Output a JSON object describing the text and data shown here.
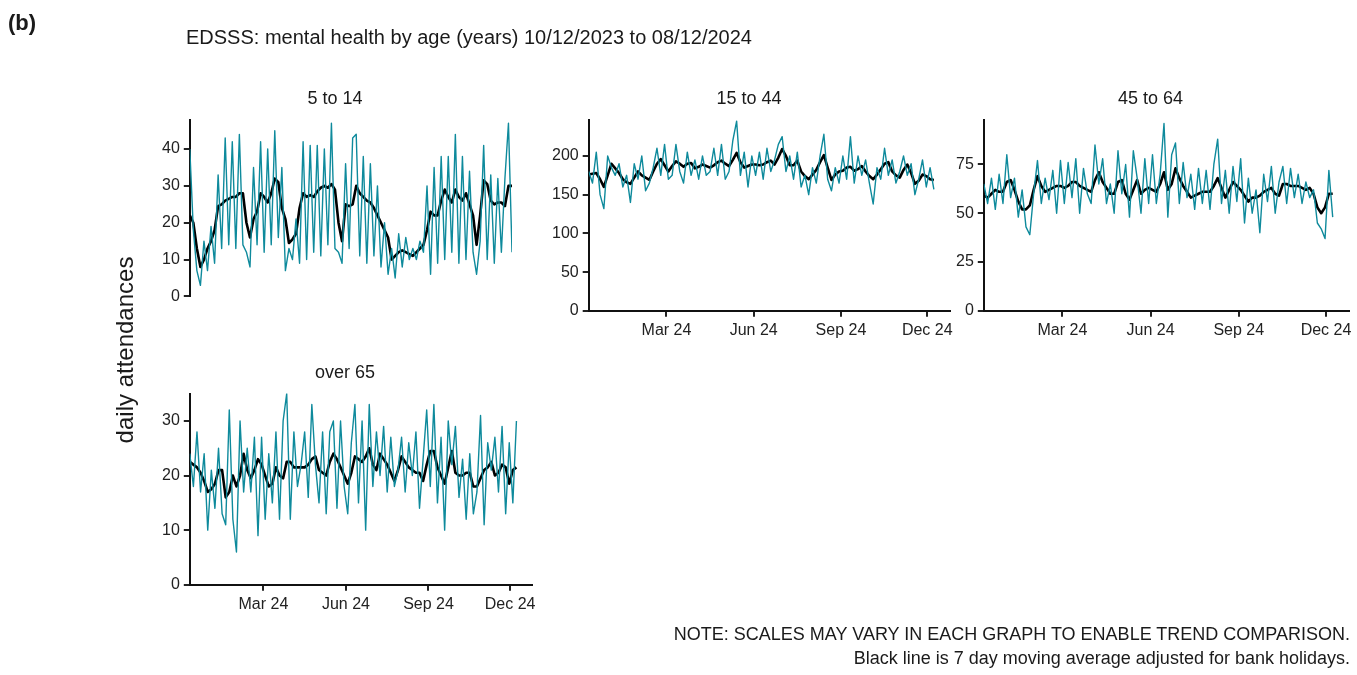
{
  "chart_data": [
    {
      "type": "line",
      "title": "5 to 14",
      "ylabel": "daily attendances",
      "annotations": [
        "(b)",
        "EDSSS: mental health by age (years) 10/12/2023 to 08/12/2024"
      ],
      "tick_labels": "y",
      "ylim": [
        0,
        48
      ],
      "yticks": [
        0,
        10,
        20,
        30,
        40
      ],
      "categories": [
        null,
        null,
        null,
        null,
        null,
        null,
        null,
        null,
        null,
        null,
        null,
        null,
        null,
        null,
        null,
        null,
        null,
        null,
        null,
        null,
        null,
        null,
        null,
        null,
        null,
        null,
        null,
        null,
        null,
        null,
        null,
        null,
        null,
        null,
        null,
        null,
        null,
        null,
        null,
        null,
        null,
        null,
        null,
        null,
        null,
        null,
        null,
        null,
        null,
        null,
        null,
        null,
        null,
        null,
        null,
        null,
        null,
        null,
        null,
        null,
        null,
        null,
        null,
        null,
        null,
        null,
        null,
        null,
        null,
        null,
        null,
        null,
        null,
        null,
        null,
        null,
        null,
        null,
        null,
        null,
        null,
        null,
        null,
        null,
        null,
        null,
        null,
        null,
        null,
        null,
        null,
        null
      ],
      "series": [
        {
          "color": "#0e8a9c",
          "values": [
            40,
            18,
            7,
            3,
            15,
            7,
            19,
            9,
            33,
            13,
            43,
            14,
            42,
            13,
            44,
            14,
            12,
            8,
            35,
            14,
            42,
            12,
            40,
            14,
            45,
            16,
            35,
            7,
            13,
            10,
            21,
            9,
            42,
            10,
            41,
            12,
            41,
            11,
            40,
            14,
            47,
            13,
            12,
            9,
            36,
            13,
            43,
            44,
            11,
            38,
            9,
            36,
            11,
            30,
            8,
            20,
            6,
            13,
            5,
            17,
            8,
            16,
            10,
            13,
            10,
            15,
            12,
            30,
            6,
            35,
            9,
            38,
            10,
            38,
            12,
            44,
            9,
            38,
            10,
            34,
            12,
            6,
            15,
            41,
            10,
            33,
            9,
            32,
            12,
            32,
            47,
            12
          ]
        },
        {
          "color": "#000000",
          "values": [
            22,
            20,
            13,
            8,
            10,
            13,
            15,
            18,
            24.5,
            25,
            26,
            26.5,
            27,
            27,
            28,
            28,
            20,
            16,
            21,
            23,
            28,
            27,
            25.5,
            28,
            32,
            31,
            24,
            21,
            14.5,
            15.5,
            17,
            24,
            28,
            27,
            27.5,
            27,
            28.5,
            29.5,
            30,
            29.5,
            30.5,
            29,
            20,
            15,
            25,
            24.5,
            25,
            30,
            28,
            27,
            26,
            25.5,
            24,
            22,
            20,
            18,
            16,
            10,
            11,
            12,
            12.5,
            12,
            11.5,
            11,
            12,
            13,
            14,
            18,
            23,
            22,
            22,
            26,
            29,
            27,
            25.5,
            29,
            27,
            26,
            28,
            25,
            22,
            14,
            22,
            31.5,
            30.5,
            26,
            25,
            25.5,
            25.5,
            24.5,
            30,
            30
          ]
        }
      ]
    },
    {
      "type": "line",
      "title": "15 to 44",
      "xlim": [
        "2023-12-10",
        "2024-12-25"
      ],
      "xticks": [
        {
          "value": "2024-03-01",
          "label": "Mar 24"
        },
        {
          "value": "2024-06-01",
          "label": "Jun 24"
        },
        {
          "value": "2024-09-01",
          "label": "Sep 24"
        },
        {
          "value": "2024-12-01",
          "label": "Dec 24"
        }
      ],
      "ylim": [
        0,
        247
      ],
      "yticks": [
        0,
        50,
        100,
        150,
        200
      ],
      "x": [
        "2023-12-10",
        "2023-12-14",
        "2023-12-18",
        "2023-12-22",
        "2023-12-26",
        "2023-12-30",
        "2024-01-03",
        "2024-01-07",
        "2024-01-11",
        "2024-01-15",
        "2024-01-19",
        "2024-01-23",
        "2024-01-27",
        "2024-01-31",
        "2024-02-04",
        "2024-02-08",
        "2024-02-12",
        "2024-02-16",
        "2024-02-20",
        "2024-02-24",
        "2024-02-28",
        "2024-03-03",
        "2024-03-07",
        "2024-03-11",
        "2024-03-15",
        "2024-03-19",
        "2024-03-23",
        "2024-03-27",
        "2024-03-31",
        "2024-04-04",
        "2024-04-08",
        "2024-04-12",
        "2024-04-16",
        "2024-04-20",
        "2024-04-24",
        "2024-04-28",
        "2024-05-02",
        "2024-05-06",
        "2024-05-10",
        "2024-05-14",
        "2024-05-18",
        "2024-05-22",
        "2024-05-26",
        "2024-05-30",
        "2024-06-03",
        "2024-06-07",
        "2024-06-11",
        "2024-06-15",
        "2024-06-19",
        "2024-06-23",
        "2024-06-27",
        "2024-07-01",
        "2024-07-05",
        "2024-07-09",
        "2024-07-13",
        "2024-07-17",
        "2024-07-21",
        "2024-07-25",
        "2024-07-29",
        "2024-08-02",
        "2024-08-06",
        "2024-08-10",
        "2024-08-14",
        "2024-08-18",
        "2024-08-22",
        "2024-08-26",
        "2024-08-30",
        "2024-09-03",
        "2024-09-07",
        "2024-09-11",
        "2024-09-15",
        "2024-09-19",
        "2024-09-23",
        "2024-09-27",
        "2024-10-01",
        "2024-10-05",
        "2024-10-09",
        "2024-10-13",
        "2024-10-17",
        "2024-10-21",
        "2024-10-25",
        "2024-10-29",
        "2024-11-02",
        "2024-11-06",
        "2024-11-10",
        "2024-11-14",
        "2024-11-18",
        "2024-11-22",
        "2024-11-26",
        "2024-11-30",
        "2024-12-04",
        "2024-12-08"
      ],
      "series": [
        {
          "color": "#0e8a9c",
          "values": [
            180,
            165,
            205,
            150,
            132,
            200,
            185,
            175,
            190,
            160,
            175,
            140,
            190,
            170,
            200,
            155,
            165,
            185,
            210,
            175,
            215,
            170,
            175,
            215,
            180,
            165,
            205,
            175,
            195,
            170,
            200,
            175,
            180,
            210,
            175,
            215,
            170,
            180,
            220,
            245,
            175,
            205,
            160,
            200,
            175,
            205,
            170,
            210,
            180,
            195,
            215,
            225,
            180,
            200,
            170,
            205,
            160,
            175,
            150,
            185,
            165,
            200,
            228,
            170,
            155,
            185,
            165,
            200,
            170,
            225,
            165,
            200,
            175,
            195,
            165,
            138,
            185,
            170,
            210,
            175,
            195,
            165,
            180,
            200,
            175,
            190,
            150,
            170,
            195,
            160,
            185,
            157
          ]
        },
        {
          "color": "#000000",
          "values": [
            176,
            177,
            178,
            170,
            160,
            175,
            190,
            184,
            178,
            170,
            166,
            164,
            172,
            180,
            175,
            172,
            169,
            180,
            190,
            196,
            188,
            180,
            187,
            193,
            190,
            186,
            190,
            191,
            184,
            186,
            189,
            187,
            185,
            188,
            192,
            194,
            190,
            187,
            195,
            204,
            192,
            185,
            187,
            189,
            189,
            188,
            189,
            192,
            194,
            189,
            198,
            209,
            200,
            188,
            188,
            194,
            180,
            174,
            170,
            176,
            182,
            192,
            201,
            185,
            169,
            176,
            180,
            181,
            185,
            186,
            181,
            183,
            187,
            180,
            174,
            170,
            176,
            183,
            190,
            192,
            180,
            175,
            172,
            182,
            189,
            178,
            164,
            168,
            176,
            174,
            170,
            169
          ]
        }
      ]
    },
    {
      "type": "line",
      "title": "45 to 64",
      "xlim": [
        "2023-12-10",
        "2024-12-25"
      ],
      "xticks": [
        {
          "value": "2024-03-01",
          "label": "Mar 24"
        },
        {
          "value": "2024-06-01",
          "label": "Jun 24"
        },
        {
          "value": "2024-09-01",
          "label": "Sep 24"
        },
        {
          "value": "2024-12-01",
          "label": "Dec 24"
        }
      ],
      "ylim": [
        0,
        98
      ],
      "yticks": [
        0,
        25,
        50,
        75
      ],
      "x": [
        "2023-12-10",
        "2023-12-14",
        "2023-12-18",
        "2023-12-22",
        "2023-12-26",
        "2023-12-30",
        "2024-01-03",
        "2024-01-07",
        "2024-01-11",
        "2024-01-15",
        "2024-01-19",
        "2024-01-23",
        "2024-01-27",
        "2024-01-31",
        "2024-02-04",
        "2024-02-08",
        "2024-02-12",
        "2024-02-16",
        "2024-02-20",
        "2024-02-24",
        "2024-02-28",
        "2024-03-03",
        "2024-03-07",
        "2024-03-11",
        "2024-03-15",
        "2024-03-19",
        "2024-03-23",
        "2024-03-27",
        "2024-03-31",
        "2024-04-04",
        "2024-04-08",
        "2024-04-12",
        "2024-04-16",
        "2024-04-20",
        "2024-04-24",
        "2024-04-28",
        "2024-05-02",
        "2024-05-06",
        "2024-05-10",
        "2024-05-14",
        "2024-05-18",
        "2024-05-22",
        "2024-05-26",
        "2024-05-30",
        "2024-06-03",
        "2024-06-07",
        "2024-06-11",
        "2024-06-15",
        "2024-06-19",
        "2024-06-23",
        "2024-06-27",
        "2024-07-01",
        "2024-07-05",
        "2024-07-09",
        "2024-07-13",
        "2024-07-17",
        "2024-07-21",
        "2024-07-25",
        "2024-07-29",
        "2024-08-02",
        "2024-08-06",
        "2024-08-10",
        "2024-08-14",
        "2024-08-18",
        "2024-08-22",
        "2024-08-26",
        "2024-08-30",
        "2024-09-03",
        "2024-09-07",
        "2024-09-11",
        "2024-09-15",
        "2024-09-19",
        "2024-09-23",
        "2024-09-27",
        "2024-10-01",
        "2024-10-05",
        "2024-10-09",
        "2024-10-13",
        "2024-10-17",
        "2024-10-21",
        "2024-10-25",
        "2024-10-29",
        "2024-11-02",
        "2024-11-06",
        "2024-11-10",
        "2024-11-14",
        "2024-11-18",
        "2024-11-22",
        "2024-11-26",
        "2024-11-30",
        "2024-12-04",
        "2024-12-08"
      ],
      "series": [
        {
          "color": "#0e8a9c",
          "values": [
            65,
            55,
            68,
            52,
            70,
            55,
            80,
            58,
            68,
            48,
            62,
            43,
            39,
            60,
            77,
            55,
            68,
            57,
            72,
            50,
            77,
            55,
            76,
            58,
            78,
            50,
            73,
            60,
            55,
            85,
            65,
            78,
            55,
            65,
            50,
            82,
            60,
            75,
            48,
            82,
            68,
            50,
            78,
            55,
            80,
            55,
            70,
            96,
            48,
            80,
            86,
            55,
            76,
            58,
            70,
            52,
            73,
            55,
            72,
            52,
            75,
            88,
            55,
            72,
            50,
            74,
            56,
            78,
            45,
            68,
            50,
            62,
            40,
            70,
            56,
            74,
            50,
            66,
            74,
            55,
            73,
            58,
            70,
            55,
            66,
            58,
            62,
            45,
            42,
            37,
            72,
            48
          ]
        },
        {
          "color": "#000000",
          "values": [
            59,
            58,
            60,
            62,
            61,
            61,
            66,
            67,
            62,
            56,
            52,
            52,
            54,
            62,
            69,
            64,
            61,
            62,
            63,
            64,
            64,
            63,
            64,
            66,
            66,
            64,
            63,
            62,
            61,
            67,
            71,
            66,
            63,
            60,
            60,
            66,
            67,
            60,
            57,
            62,
            67,
            60,
            62,
            63,
            62,
            61,
            65,
            71,
            62,
            65,
            73,
            68,
            64,
            61,
            58,
            59,
            60,
            61,
            61,
            61,
            64,
            68,
            63,
            58,
            62,
            66,
            64,
            62,
            59,
            56,
            58,
            58,
            59,
            61,
            62,
            63,
            60,
            59,
            65,
            65,
            64,
            64,
            64,
            63,
            62,
            63,
            60,
            53,
            50,
            53,
            60,
            60
          ]
        }
      ]
    },
    {
      "type": "line",
      "title": "over 65",
      "annotations": [
        "NOTE: SCALES MAY VARY IN EACH GRAPH TO ENABLE TREND COMPARISON.",
        "Black line is 7 day moving average adjusted for bank holidays."
      ],
      "xlim": [
        "2023-12-10",
        "2024-12-25"
      ],
      "xticks": [
        {
          "value": "2024-03-01",
          "label": "Mar 24"
        },
        {
          "value": "2024-06-01",
          "label": "Jun 24"
        },
        {
          "value": "2024-09-01",
          "label": "Sep 24"
        },
        {
          "value": "2024-12-01",
          "label": "Dec 24"
        }
      ],
      "ylim": [
        0,
        35
      ],
      "yticks": [
        0,
        10,
        20,
        30
      ],
      "x": [
        "2023-12-10",
        "2023-12-14",
        "2023-12-18",
        "2023-12-22",
        "2023-12-26",
        "2023-12-30",
        "2024-01-03",
        "2024-01-07",
        "2024-01-11",
        "2024-01-15",
        "2024-01-19",
        "2024-01-23",
        "2024-01-27",
        "2024-01-31",
        "2024-02-04",
        "2024-02-08",
        "2024-02-12",
        "2024-02-16",
        "2024-02-20",
        "2024-02-24",
        "2024-02-28",
        "2024-03-03",
        "2024-03-07",
        "2024-03-11",
        "2024-03-15",
        "2024-03-19",
        "2024-03-23",
        "2024-03-27",
        "2024-03-31",
        "2024-04-04",
        "2024-04-08",
        "2024-04-12",
        "2024-04-16",
        "2024-04-20",
        "2024-04-24",
        "2024-04-28",
        "2024-05-02",
        "2024-05-06",
        "2024-05-10",
        "2024-05-14",
        "2024-05-18",
        "2024-05-22",
        "2024-05-26",
        "2024-05-30",
        "2024-06-03",
        "2024-06-07",
        "2024-06-11",
        "2024-06-15",
        "2024-06-19",
        "2024-06-23",
        "2024-06-27",
        "2024-07-01",
        "2024-07-05",
        "2024-07-09",
        "2024-07-13",
        "2024-07-17",
        "2024-07-21",
        "2024-07-25",
        "2024-07-29",
        "2024-08-02",
        "2024-08-06",
        "2024-08-10",
        "2024-08-14",
        "2024-08-18",
        "2024-08-22",
        "2024-08-26",
        "2024-08-30",
        "2024-09-03",
        "2024-09-07",
        "2024-09-11",
        "2024-09-15",
        "2024-09-19",
        "2024-09-23",
        "2024-09-27",
        "2024-10-01",
        "2024-10-05",
        "2024-10-09",
        "2024-10-13",
        "2024-10-17",
        "2024-10-21",
        "2024-10-25",
        "2024-10-29",
        "2024-11-02",
        "2024-11-06",
        "2024-11-10",
        "2024-11-14",
        "2024-11-18",
        "2024-11-22",
        "2024-11-26",
        "2024-11-30",
        "2024-12-04",
        "2024-12-08"
      ],
      "series": [
        {
          "color": "#0e8a9c",
          "values": [
            24,
            18,
            28,
            17,
            24,
            10,
            21,
            14,
            25,
            13,
            11,
            32,
            12,
            6,
            30,
            17,
            25,
            17,
            27,
            9,
            27,
            12,
            24,
            15,
            28,
            12,
            30,
            35,
            12,
            28,
            18,
            22,
            28,
            16,
            33,
            22,
            15,
            28,
            13,
            28,
            30,
            14,
            30,
            18,
            13,
            26,
            33,
            15,
            30,
            10,
            33,
            18,
            28,
            20,
            29,
            17,
            27,
            18,
            21,
            27,
            17,
            26,
            20,
            28,
            14,
            23,
            32,
            18,
            33,
            15,
            27,
            10,
            30,
            22,
            29,
            16,
            23,
            12,
            24,
            13,
            17,
            31,
            11,
            26,
            21,
            27,
            17,
            29,
            13,
            26,
            15,
            30
          ]
        },
        {
          "color": "#000000",
          "values": [
            22.5,
            22,
            21.5,
            20.5,
            19,
            17,
            17.5,
            18.5,
            21,
            21,
            16,
            17,
            20,
            18,
            20,
            24,
            21,
            19.5,
            21,
            23,
            22,
            20,
            18,
            18.5,
            21.5,
            20,
            19.5,
            22.5,
            22.5,
            21.5,
            21.5,
            21.5,
            21.5,
            22,
            23,
            23.5,
            21,
            20.5,
            20,
            22.5,
            24,
            23,
            21.5,
            20,
            18.5,
            20.5,
            23.5,
            23,
            22.5,
            23.5,
            25,
            22,
            21,
            24,
            23,
            22,
            20.5,
            19,
            21,
            23.5,
            22.5,
            21.5,
            21,
            20.5,
            20.5,
            19,
            22,
            24.5,
            24.5,
            21.5,
            20,
            18.5,
            21.5,
            24.5,
            20.5,
            20,
            20,
            20.5,
            20.5,
            18,
            18,
            19.5,
            21,
            21.5,
            22.5,
            20,
            20.5,
            22,
            21.5,
            18.5,
            21,
            21.5
          ]
        }
      ]
    }
  ]
}
